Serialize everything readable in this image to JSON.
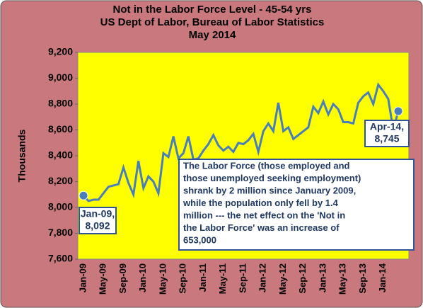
{
  "chart_data": {
    "type": "line",
    "title": [
      "Not in the Labor Force Level - 45-54 yrs",
      "US Dept of Labor, Bureau of Labor Statistics",
      "May 2014"
    ],
    "y_label": "Thousands",
    "categories": [
      "Jan-09",
      null,
      null,
      null,
      "May-09",
      null,
      null,
      null,
      "Sep-09",
      null,
      null,
      null,
      "Jan-10",
      null,
      null,
      null,
      "May-10",
      null,
      null,
      null,
      "Sep-10",
      null,
      null,
      null,
      "Jan-11",
      null,
      null,
      null,
      "May-11",
      null,
      null,
      null,
      "Sep-11",
      null,
      null,
      null,
      "Jan-12",
      null,
      null,
      null,
      "May-12",
      null,
      null,
      null,
      "Sep-12",
      null,
      null,
      null,
      "Jan-13",
      null,
      null,
      null,
      "May-13",
      null,
      null,
      null,
      "Sep-13",
      null,
      null,
      null,
      "Jan-14",
      null,
      null,
      null
    ],
    "series": [
      {
        "name": "Not in the Labor Force",
        "color": "#4a7ebb",
        "values": [
          8092,
          8050,
          8060,
          8060,
          8110,
          8160,
          8170,
          8180,
          8310,
          8190,
          8100,
          8360,
          8150,
          8240,
          8200,
          8110,
          8420,
          8390,
          8550,
          8380,
          8420,
          8550,
          8370,
          8380,
          8440,
          8490,
          8560,
          8480,
          8440,
          8470,
          8430,
          8500,
          8490,
          8520,
          8570,
          8430,
          8590,
          8650,
          8590,
          8810,
          8590,
          8620,
          8530,
          8560,
          8590,
          8620,
          8780,
          8730,
          8820,
          8720,
          8800,
          8760,
          8660,
          8660,
          8650,
          8810,
          8860,
          8890,
          8800,
          8950,
          8900,
          8840,
          8600,
          8745
        ]
      }
    ],
    "ylim": [
      7600,
      9200
    ],
    "yticks": [
      {
        "value": 7600,
        "label": "7,600"
      },
      {
        "value": 7800,
        "label": "7,800"
      },
      {
        "value": 8000,
        "label": "8,000"
      },
      {
        "value": 8200,
        "label": "8,200"
      },
      {
        "value": 8400,
        "label": "8,400"
      },
      {
        "value": 8600,
        "label": "8,600"
      },
      {
        "value": 8800,
        "label": "8,800"
      },
      {
        "value": 9000,
        "label": "9,000"
      },
      {
        "value": 9200,
        "label": "9,200"
      }
    ],
    "grid": false,
    "start_label": [
      "Jan-09,",
      "8,092"
    ],
    "end_label": [
      "Apr-14,",
      "8,745"
    ],
    "note": [
      "The Labor  Force (those employed and",
      "those unemployed seeking employment)",
      "shrank by 2 million since January  2009,",
      "while the population only fell by 1.4",
      "million --- the net effect on the 'Not in",
      "the Labor Force' was an increase of",
      "653,000"
    ]
  }
}
